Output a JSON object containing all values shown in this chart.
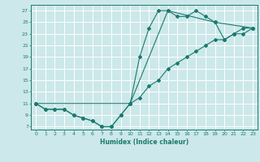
{
  "xlabel": "Humidex (Indice chaleur)",
  "bg_color": "#cce8ea",
  "grid_color": "#ffffff",
  "line_color": "#1a7a6e",
  "xlim": [
    -0.5,
    23.5
  ],
  "ylim": [
    6.5,
    28.0
  ],
  "xticks": [
    0,
    1,
    2,
    3,
    4,
    5,
    6,
    7,
    8,
    9,
    10,
    11,
    12,
    13,
    14,
    15,
    16,
    17,
    18,
    19,
    20,
    21,
    22,
    23
  ],
  "yticks": [
    7,
    9,
    11,
    13,
    15,
    17,
    19,
    21,
    23,
    25,
    27
  ],
  "line1_x": [
    0,
    1,
    2,
    3,
    4,
    5,
    6,
    7,
    8,
    9,
    10,
    11,
    12,
    13,
    14,
    15,
    16,
    17,
    18,
    19,
    20,
    21,
    22,
    23
  ],
  "line1_y": [
    11,
    10,
    10,
    10,
    9,
    8.5,
    8,
    7,
    7,
    9,
    11,
    19,
    24,
    27,
    27,
    26,
    26,
    27,
    26,
    25,
    22,
    23,
    24,
    24
  ],
  "line2_x": [
    0,
    1,
    2,
    3,
    4,
    5,
    6,
    7,
    8,
    9,
    10,
    11,
    12,
    13,
    14,
    15,
    16,
    17,
    18,
    19,
    20,
    21,
    22,
    23
  ],
  "line2_y": [
    11,
    10,
    10,
    10,
    9,
    8.5,
    8,
    7,
    7,
    9,
    11,
    12,
    14,
    15,
    17,
    18,
    19,
    20,
    21,
    22,
    22,
    23,
    23,
    24
  ],
  "line3_x": [
    0,
    10,
    14,
    19,
    23
  ],
  "line3_y": [
    11,
    11,
    27,
    25,
    24
  ]
}
